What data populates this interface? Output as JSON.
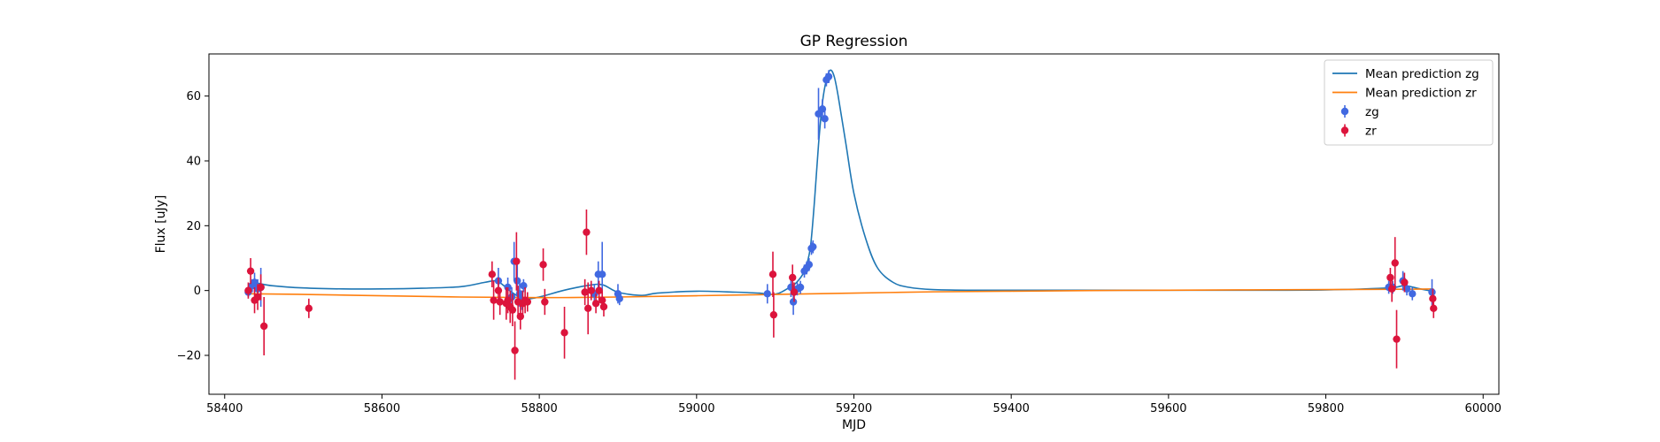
{
  "chart_data": {
    "type": "scatter",
    "title": "GP Regression",
    "xlabel": "MJD",
    "ylabel": "Flux [uJy]",
    "xlim": [
      58380,
      60020
    ],
    "ylim": [
      -32,
      73
    ],
    "xticks": [
      58400,
      58600,
      58800,
      59000,
      59200,
      59400,
      59600,
      59800,
      60000
    ],
    "yticks": [
      -20,
      0,
      20,
      40,
      60
    ],
    "grid": false,
    "legend_position": "top-right",
    "colors": {
      "zg_line": "#1f77b4",
      "zr_line": "#ff7f0e",
      "zg_points": "#4169e1",
      "zr_points": "#dc143c"
    },
    "legend": [
      {
        "label": "Mean prediction zg",
        "kind": "line",
        "color": "#1f77b4"
      },
      {
        "label": "Mean prediction zr",
        "kind": "line",
        "color": "#ff7f0e"
      },
      {
        "label": "zg",
        "kind": "errorbar",
        "color": "#4169e1"
      },
      {
        "label": "zr",
        "kind": "errorbar",
        "color": "#dc143c"
      }
    ],
    "lines": [
      {
        "name": "Mean prediction zg",
        "color": "#1f77b4",
        "x": [
          58430,
          58440,
          58460,
          58500,
          58550,
          58600,
          58650,
          58700,
          58730,
          58745,
          58755,
          58765,
          58780,
          58800,
          58830,
          58860,
          58880,
          58900,
          58930,
          58950,
          59000,
          59050,
          59080,
          59095,
          59105,
          59115,
          59125,
          59135,
          59140,
          59145,
          59150,
          59155,
          59160,
          59165,
          59170,
          59175,
          59180,
          59190,
          59200,
          59215,
          59230,
          59250,
          59270,
          59300,
          59350,
          59400,
          59500,
          59600,
          59700,
          59800,
          59880,
          59900,
          59920,
          59937
        ],
        "y": [
          2.0,
          2.3,
          1.5,
          0.8,
          0.5,
          0.5,
          0.7,
          1.2,
          2.5,
          3.0,
          1.5,
          -0.5,
          -2.5,
          -2.0,
          0.0,
          1.5,
          1.8,
          -0.5,
          -1.5,
          -0.8,
          -0.2,
          -0.5,
          -0.8,
          -1.2,
          -0.8,
          0.5,
          2.0,
          5.0,
          8.0,
          14.0,
          28.0,
          45.0,
          58.0,
          65.0,
          68.0,
          66.0,
          60.0,
          45.0,
          30.0,
          16.0,
          7.0,
          2.5,
          1.0,
          0.3,
          0.1,
          0.1,
          0.1,
          0.1,
          0.1,
          0.2,
          0.8,
          1.5,
          0.5,
          -0.3
        ]
      },
      {
        "name": "Mean prediction zr",
        "color": "#ff7f0e",
        "x": [
          58430,
          58500,
          58600,
          58700,
          58800,
          58900,
          59000,
          59100,
          59200,
          59300,
          59400,
          59500,
          59600,
          59700,
          59800,
          59900,
          59937
        ],
        "y": [
          -1.0,
          -1.2,
          -1.6,
          -2.0,
          -2.2,
          -2.0,
          -1.6,
          -1.2,
          -0.8,
          -0.4,
          -0.2,
          0.0,
          0.1,
          0.2,
          0.3,
          0.4,
          0.5
        ]
      }
    ],
    "series": [
      {
        "name": "zg",
        "color": "#4169e1",
        "points": [
          {
            "x": 58430,
            "y": -0.5,
            "err": 1.5
          },
          {
            "x": 58435,
            "y": 1.5,
            "err": 2
          },
          {
            "x": 58438,
            "y": 2.5,
            "err": 3
          },
          {
            "x": 58442,
            "y": 0.5,
            "err": 3
          },
          {
            "x": 58446,
            "y": 1.0,
            "err": 6
          },
          {
            "x": 58748,
            "y": 3.0,
            "err": 4
          },
          {
            "x": 58760,
            "y": 1.0,
            "err": 3
          },
          {
            "x": 58765,
            "y": -2.0,
            "err": 3
          },
          {
            "x": 58768,
            "y": 9.0,
            "err": 6
          },
          {
            "x": 58772,
            "y": 3.0,
            "err": 5
          },
          {
            "x": 58775,
            "y": -1.0,
            "err": 4
          },
          {
            "x": 58778,
            "y": -3.0,
            "err": 3
          },
          {
            "x": 58780,
            "y": 1.5,
            "err": 2
          },
          {
            "x": 58870,
            "y": -1.0,
            "err": 3
          },
          {
            "x": 58875,
            "y": 5.0,
            "err": 4
          },
          {
            "x": 58880,
            "y": 5.0,
            "err": 10
          },
          {
            "x": 58900,
            "y": -1.0,
            "err": 3
          },
          {
            "x": 58902,
            "y": -2.5,
            "err": 2
          },
          {
            "x": 59090,
            "y": -1.0,
            "err": 3
          },
          {
            "x": 59120,
            "y": 1.0,
            "err": 3
          },
          {
            "x": 59123,
            "y": -3.5,
            "err": 4
          },
          {
            "x": 59128,
            "y": 0.5,
            "err": 2
          },
          {
            "x": 59132,
            "y": 1.0,
            "err": 2
          },
          {
            "x": 59137,
            "y": 6.0,
            "err": 2
          },
          {
            "x": 59140,
            "y": 7.0,
            "err": 2
          },
          {
            "x": 59143,
            "y": 8.0,
            "err": 2
          },
          {
            "x": 59146,
            "y": 13.0,
            "err": 2
          },
          {
            "x": 59148,
            "y": 13.5,
            "err": 2
          },
          {
            "x": 59155,
            "y": 54.5,
            "err": 8
          },
          {
            "x": 59160,
            "y": 56.0,
            "err": 3
          },
          {
            "x": 59163,
            "y": 53.0,
            "err": 3
          },
          {
            "x": 59165,
            "y": 65.0,
            "err": 2
          },
          {
            "x": 59168,
            "y": 66.0,
            "err": 2
          },
          {
            "x": 59880,
            "y": 1.0,
            "err": 2
          },
          {
            "x": 59885,
            "y": 1.0,
            "err": 2
          },
          {
            "x": 59898,
            "y": 3.0,
            "err": 3
          },
          {
            "x": 59903,
            "y": 0.5,
            "err": 2
          },
          {
            "x": 59910,
            "y": -1.0,
            "err": 2
          },
          {
            "x": 59935,
            "y": -0.5,
            "err": 4
          }
        ]
      },
      {
        "name": "zr",
        "color": "#dc143c",
        "points": [
          {
            "x": 58430,
            "y": 0.0,
            "err": 2.5
          },
          {
            "x": 58433,
            "y": 6.0,
            "err": 4
          },
          {
            "x": 58438,
            "y": -3.0,
            "err": 4
          },
          {
            "x": 58442,
            "y": -2.0,
            "err": 4
          },
          {
            "x": 58446,
            "y": 1.0,
            "err": 4
          },
          {
            "x": 58450,
            "y": -11.0,
            "err": 9
          },
          {
            "x": 58507,
            "y": -5.5,
            "err": 3
          },
          {
            "x": 58740,
            "y": 5.0,
            "err": 4
          },
          {
            "x": 58742,
            "y": -3.0,
            "err": 6
          },
          {
            "x": 58748,
            "y": 0.0,
            "err": 4
          },
          {
            "x": 58750,
            "y": -3.5,
            "err": 4
          },
          {
            "x": 58758,
            "y": -4.0,
            "err": 5
          },
          {
            "x": 58760,
            "y": -3.0,
            "err": 4
          },
          {
            "x": 58763,
            "y": -5.0,
            "err": 5
          },
          {
            "x": 58766,
            "y": -6.0,
            "err": 5
          },
          {
            "x": 58769,
            "y": -18.5,
            "err": 9
          },
          {
            "x": 58771,
            "y": 9.0,
            "err": 9
          },
          {
            "x": 58773,
            "y": -3.5,
            "err": 5
          },
          {
            "x": 58776,
            "y": -8.0,
            "err": 4
          },
          {
            "x": 58779,
            "y": -4.0,
            "err": 4
          },
          {
            "x": 58782,
            "y": -3.0,
            "err": 4
          },
          {
            "x": 58785,
            "y": -3.5,
            "err": 3
          },
          {
            "x": 58805,
            "y": 8.0,
            "err": 5
          },
          {
            "x": 58807,
            "y": -3.5,
            "err": 4
          },
          {
            "x": 58832,
            "y": -13.0,
            "err": 8
          },
          {
            "x": 58858,
            "y": -0.5,
            "err": 4
          },
          {
            "x": 58860,
            "y": 18.0,
            "err": 7
          },
          {
            "x": 58862,
            "y": -5.5,
            "err": 8
          },
          {
            "x": 58866,
            "y": 0.0,
            "err": 3
          },
          {
            "x": 58872,
            "y": -4.0,
            "err": 3
          },
          {
            "x": 58876,
            "y": 0.0,
            "err": 3
          },
          {
            "x": 58880,
            "y": -3.0,
            "err": 3
          },
          {
            "x": 58882,
            "y": -5.0,
            "err": 3
          },
          {
            "x": 59097,
            "y": 5.0,
            "err": 7
          },
          {
            "x": 59098,
            "y": -7.5,
            "err": 7
          },
          {
            "x": 59122,
            "y": 4.0,
            "err": 4
          },
          {
            "x": 59124,
            "y": -0.5,
            "err": 3
          },
          {
            "x": 59882,
            "y": 4.0,
            "err": 3
          },
          {
            "x": 59884,
            "y": 0.5,
            "err": 4
          },
          {
            "x": 59888,
            "y": 8.5,
            "err": 8
          },
          {
            "x": 59890,
            "y": -15.0,
            "err": 9
          },
          {
            "x": 59900,
            "y": 2.5,
            "err": 3
          },
          {
            "x": 59936,
            "y": -2.5,
            "err": 3
          },
          {
            "x": 59937,
            "y": -5.5,
            "err": 3
          }
        ]
      }
    ]
  }
}
